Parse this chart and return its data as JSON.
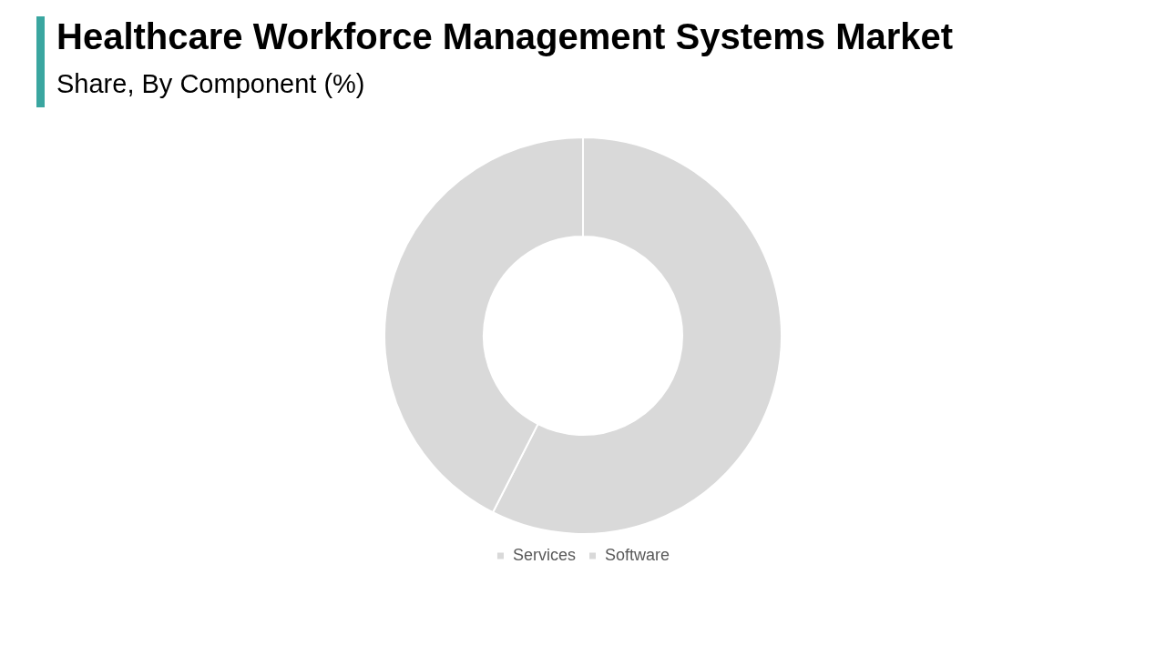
{
  "chart_data": {
    "type": "donut",
    "title": "Healthcare Workforce Management Systems Market",
    "subtitle": "Share, By Component (%)",
    "categories": [
      "Services",
      "Software"
    ],
    "values": [
      57.5,
      42.5
    ],
    "colors": [
      "#d9d9d9",
      "#d9d9d9"
    ],
    "legend": "bottom"
  }
}
